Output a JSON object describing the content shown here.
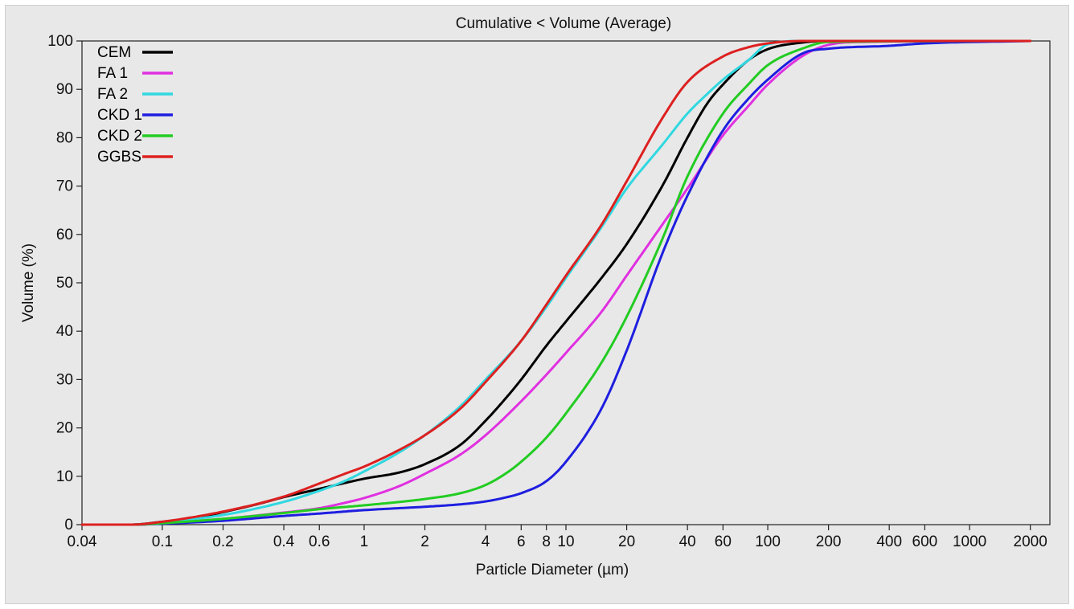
{
  "chart_data": {
    "type": "line",
    "title": "Cumulative < Volume (Average)",
    "xlabel": "Particle Diameter (µm)",
    "ylabel": "Volume (%)",
    "xscale": "log",
    "xlim": [
      0.04,
      2500
    ],
    "ylim": [
      0,
      100
    ],
    "grid": false,
    "legend_position": "top-left",
    "x_ticks": [
      0.04,
      0.1,
      0.2,
      0.4,
      0.6,
      1,
      2,
      4,
      6,
      8,
      10,
      20,
      40,
      60,
      100,
      200,
      400,
      600,
      1000,
      2000
    ],
    "x_tick_labels": [
      "0.04",
      "0.1",
      "0.2",
      "0.4",
      "0.6",
      "1",
      "2",
      "4",
      "6",
      "8",
      "10",
      "20",
      "40",
      "60",
      "100",
      "200",
      "400",
      "600",
      "1000",
      "2000"
    ],
    "y_ticks": [
      0,
      10,
      20,
      30,
      40,
      50,
      60,
      70,
      80,
      90,
      100
    ],
    "y_tick_labels": [
      "0",
      "10",
      "20",
      "30",
      "40",
      "50",
      "60",
      "70",
      "80",
      "90",
      "100"
    ],
    "series": [
      {
        "name": "CEM",
        "color": "#000000",
        "points": [
          [
            0.04,
            0
          ],
          [
            0.07,
            0
          ],
          [
            0.1,
            0.6
          ],
          [
            0.15,
            1.5
          ],
          [
            0.2,
            2.6
          ],
          [
            0.3,
            4.3
          ],
          [
            0.4,
            5.7
          ],
          [
            0.6,
            7.4
          ],
          [
            0.8,
            8.6
          ],
          [
            1,
            9.5
          ],
          [
            1.5,
            10.8
          ],
          [
            2,
            12.5
          ],
          [
            3,
            16.5
          ],
          [
            4,
            21.5
          ],
          [
            5,
            26
          ],
          [
            6,
            30
          ],
          [
            8,
            37
          ],
          [
            10,
            42
          ],
          [
            15,
            51
          ],
          [
            20,
            58
          ],
          [
            30,
            70
          ],
          [
            40,
            80
          ],
          [
            50,
            87
          ],
          [
            60,
            91
          ],
          [
            80,
            96
          ],
          [
            100,
            98.3
          ],
          [
            150,
            99.7
          ],
          [
            200,
            100
          ],
          [
            2000,
            100
          ]
        ]
      },
      {
        "name": "FA 1",
        "color": "#e030e0",
        "points": [
          [
            0.04,
            0
          ],
          [
            0.07,
            0
          ],
          [
            0.1,
            0.3
          ],
          [
            0.2,
            1.2
          ],
          [
            0.4,
            2.5
          ],
          [
            0.6,
            3.4
          ],
          [
            0.8,
            4.5
          ],
          [
            1,
            5.5
          ],
          [
            1.5,
            8
          ],
          [
            2,
            10.5
          ],
          [
            3,
            14.5
          ],
          [
            4,
            18.5
          ],
          [
            6,
            25.5
          ],
          [
            8,
            31
          ],
          [
            10,
            35.5
          ],
          [
            15,
            44
          ],
          [
            20,
            51.5
          ],
          [
            30,
            62
          ],
          [
            40,
            69.5
          ],
          [
            60,
            80.5
          ],
          [
            80,
            86.5
          ],
          [
            100,
            91
          ],
          [
            150,
            97
          ],
          [
            200,
            99.2
          ],
          [
            300,
            99.8
          ],
          [
            2000,
            100
          ]
        ]
      },
      {
        "name": "FA 2",
        "color": "#30d8e0",
        "points": [
          [
            0.04,
            0
          ],
          [
            0.07,
            0
          ],
          [
            0.1,
            0.5
          ],
          [
            0.2,
            2
          ],
          [
            0.4,
            4.7
          ],
          [
            0.6,
            7
          ],
          [
            0.8,
            9
          ],
          [
            1,
            11
          ],
          [
            1.5,
            15
          ],
          [
            2,
            18.5
          ],
          [
            3,
            24.5
          ],
          [
            4,
            30
          ],
          [
            6,
            38
          ],
          [
            8,
            45
          ],
          [
            10,
            51
          ],
          [
            15,
            61.5
          ],
          [
            20,
            69.5
          ],
          [
            30,
            78.5
          ],
          [
            40,
            85
          ],
          [
            50,
            89
          ],
          [
            60,
            92
          ],
          [
            80,
            96
          ],
          [
            100,
            99.3
          ],
          [
            150,
            100
          ],
          [
            2000,
            100
          ]
        ]
      },
      {
        "name": "CKD 1",
        "color": "#1e1ee0",
        "points": [
          [
            0.04,
            0
          ],
          [
            0.07,
            0
          ],
          [
            0.1,
            0.2
          ],
          [
            0.2,
            0.8
          ],
          [
            0.4,
            1.8
          ],
          [
            0.6,
            2.3
          ],
          [
            1,
            3
          ],
          [
            2,
            3.7
          ],
          [
            3,
            4.2
          ],
          [
            4,
            4.8
          ],
          [
            5,
            5.6
          ],
          [
            6,
            6.5
          ],
          [
            8,
            9
          ],
          [
            10,
            13
          ],
          [
            15,
            24
          ],
          [
            20,
            36
          ],
          [
            30,
            56
          ],
          [
            40,
            68
          ],
          [
            60,
            81.5
          ],
          [
            80,
            88
          ],
          [
            100,
            92
          ],
          [
            150,
            97.5
          ],
          [
            200,
            98.4
          ],
          [
            400,
            99
          ],
          [
            600,
            99.5
          ],
          [
            2000,
            100
          ]
        ]
      },
      {
        "name": "CKD 2",
        "color": "#22cc22",
        "points": [
          [
            0.04,
            0
          ],
          [
            0.07,
            0
          ],
          [
            0.1,
            0.3
          ],
          [
            0.2,
            1.2
          ],
          [
            0.4,
            2.4
          ],
          [
            0.6,
            3.2
          ],
          [
            1,
            4
          ],
          [
            2,
            5.3
          ],
          [
            3,
            6.5
          ],
          [
            4,
            8.2
          ],
          [
            5,
            10.5
          ],
          [
            6,
            13
          ],
          [
            8,
            18
          ],
          [
            10,
            23
          ],
          [
            15,
            33.5
          ],
          [
            20,
            43
          ],
          [
            30,
            59
          ],
          [
            40,
            72
          ],
          [
            60,
            85
          ],
          [
            80,
            91
          ],
          [
            100,
            95
          ],
          [
            150,
            98.5
          ],
          [
            200,
            99.8
          ],
          [
            2000,
            100
          ]
        ]
      },
      {
        "name": "GGBS",
        "color": "#dd2020",
        "points": [
          [
            0.04,
            0
          ],
          [
            0.07,
            0
          ],
          [
            0.1,
            0.6
          ],
          [
            0.2,
            2.7
          ],
          [
            0.4,
            5.8
          ],
          [
            0.6,
            8.5
          ],
          [
            0.8,
            10.5
          ],
          [
            1,
            12
          ],
          [
            1.5,
            15.5
          ],
          [
            2,
            18.5
          ],
          [
            3,
            24
          ],
          [
            4,
            29.5
          ],
          [
            6,
            38
          ],
          [
            8,
            45.5
          ],
          [
            10,
            51.5
          ],
          [
            15,
            62
          ],
          [
            20,
            71
          ],
          [
            30,
            84
          ],
          [
            40,
            91.5
          ],
          [
            60,
            96.8
          ],
          [
            80,
            98.7
          ],
          [
            100,
            99.5
          ],
          [
            150,
            100
          ],
          [
            2000,
            100
          ]
        ]
      }
    ]
  }
}
